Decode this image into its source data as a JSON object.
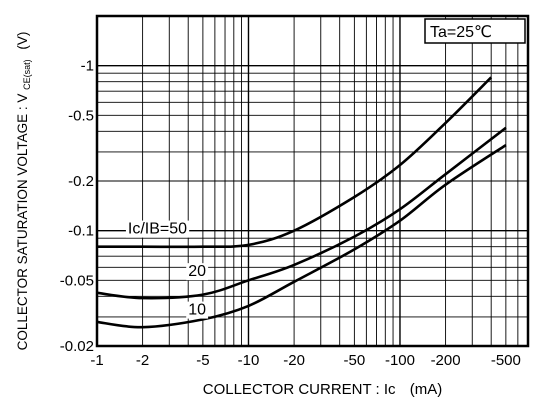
{
  "chart_data": {
    "type": "line",
    "xlabel": "COLLECTOR CURRENT : Ic",
    "xlabel_unit": "(mA)",
    "ylabel": "COLLECTOR SATURATION VOLTAGE : VCE(sat)",
    "ylabel_main": "COLLECTOR SATURATION VOLTAGE : V",
    "ylabel_sub": "CE(sat)",
    "ylabel_unit": "(V)",
    "x_scale": "log",
    "y_scale": "log",
    "xlim": [
      -1,
      -700
    ],
    "ylim": [
      -0.02,
      -2
    ],
    "grid": true,
    "condition": "Ta=25℃",
    "x_ticks": [
      {
        "value": -1,
        "label": "-1"
      },
      {
        "value": -2,
        "label": "-2"
      },
      {
        "value": -5,
        "label": "-5"
      },
      {
        "value": -10,
        "label": "-10"
      },
      {
        "value": -20,
        "label": "-20"
      },
      {
        "value": -50,
        "label": "-50"
      },
      {
        "value": -100,
        "label": "-100"
      },
      {
        "value": -200,
        "label": "-200"
      },
      {
        "value": -500,
        "label": "-500"
      }
    ],
    "y_ticks": [
      {
        "value": -0.02,
        "label": "-0.02"
      },
      {
        "value": -0.05,
        "label": "-0.05"
      },
      {
        "value": -0.1,
        "label": "-0.1"
      },
      {
        "value": -0.2,
        "label": "-0.2"
      },
      {
        "value": -0.5,
        "label": "-0.5"
      },
      {
        "value": -1,
        "label": "-1"
      }
    ],
    "series": [
      {
        "name": "50",
        "label": "Ic/IB=50",
        "label_pos": [
          -1.6,
          -0.096
        ],
        "points": [
          [
            -1,
            -0.08
          ],
          [
            -2,
            -0.08
          ],
          [
            -5,
            -0.08
          ],
          [
            -10,
            -0.082
          ],
          [
            -20,
            -0.1
          ],
          [
            -50,
            -0.16
          ],
          [
            -100,
            -0.25
          ],
          [
            -200,
            -0.45
          ],
          [
            -400,
            -0.85
          ]
        ]
      },
      {
        "name": "20",
        "label": "20",
        "label_pos": [
          -4,
          -0.053
        ],
        "points": [
          [
            -1,
            -0.042
          ],
          [
            -2,
            -0.039
          ],
          [
            -5,
            -0.041
          ],
          [
            -10,
            -0.05
          ],
          [
            -20,
            -0.062
          ],
          [
            -50,
            -0.092
          ],
          [
            -100,
            -0.135
          ],
          [
            -200,
            -0.22
          ],
          [
            -500,
            -0.42
          ]
        ]
      },
      {
        "name": "10",
        "label": "10",
        "label_pos": [
          -4,
          -0.031
        ],
        "points": [
          [
            -1,
            -0.028
          ],
          [
            -2,
            -0.026
          ],
          [
            -5,
            -0.029
          ],
          [
            -10,
            -0.035
          ],
          [
            -20,
            -0.049
          ],
          [
            -50,
            -0.077
          ],
          [
            -100,
            -0.115
          ],
          [
            -200,
            -0.19
          ],
          [
            -500,
            -0.33
          ]
        ]
      }
    ]
  }
}
